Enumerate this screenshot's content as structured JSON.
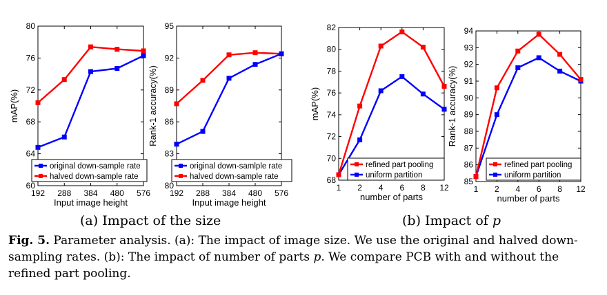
{
  "subcaptions": {
    "a_prefix": "(a) Impact of the size",
    "b_prefix": "(b) Impact of ",
    "b_var": "p"
  },
  "caption": {
    "label": "Fig. 5.",
    "t1": " Parameter analysis. (a): The impact of image size. We use the original and halved down-sampling rates. (b): The impact of number of parts ",
    "var": "p",
    "t2": ". We compare PCB with and without the refined part pooling."
  },
  "colors": {
    "red": "#ff0000",
    "blue": "#0000ff"
  },
  "chart_data": [
    {
      "type": "line",
      "panel": "a",
      "categories": [
        "192",
        "288",
        "384",
        "480",
        "576"
      ],
      "xlabel": "Input image height",
      "ylabel": "mAP(%)",
      "ylim": [
        60,
        80
      ],
      "yticks": [
        60,
        64,
        68,
        72,
        76,
        80
      ],
      "legend_position": "bottom-right",
      "series": [
        {
          "name": "original down-sample rate",
          "color": "blue",
          "values": [
            64.8,
            66.1,
            74.3,
            74.7,
            76.3
          ]
        },
        {
          "name": "halved down-sample rate",
          "color": "red",
          "values": [
            70.4,
            73.3,
            77.4,
            77.1,
            76.9
          ]
        }
      ]
    },
    {
      "type": "line",
      "panel": "a",
      "categories": [
        "192",
        "288",
        "384",
        "480",
        "576"
      ],
      "xlabel": "Input image height",
      "ylabel": "Rank-1 accuracy(%)",
      "ylim": [
        80,
        95
      ],
      "yticks": [
        80,
        83,
        86,
        89,
        92,
        95
      ],
      "legend_position": "bottom-right",
      "series": [
        {
          "name": "original down-samlple rate",
          "color": "blue",
          "values": [
            83.9,
            85.1,
            90.1,
            91.4,
            92.4
          ]
        },
        {
          "name": "halved down-sample rate",
          "color": "red",
          "values": [
            87.7,
            89.9,
            92.3,
            92.5,
            92.4
          ]
        }
      ]
    },
    {
      "type": "line",
      "panel": "b",
      "categories": [
        "1",
        "2",
        "4",
        "6",
        "8",
        "12"
      ],
      "xlabel": "number of parts",
      "ylabel": "mAP(%)",
      "ylim": [
        68,
        82
      ],
      "yticks": [
        68,
        70,
        72,
        74,
        76,
        78,
        80,
        82
      ],
      "legend_position": "bottom-right",
      "series": [
        {
          "name": "refined part pooling",
          "color": "red",
          "values": [
            68.5,
            74.8,
            80.3,
            81.6,
            80.2,
            76.6
          ]
        },
        {
          "name": "uniform partition",
          "color": "blue",
          "values": [
            68.5,
            71.7,
            76.2,
            77.5,
            75.9,
            74.5
          ]
        }
      ]
    },
    {
      "type": "line",
      "panel": "b",
      "categories": [
        "1",
        "2",
        "4",
        "6",
        "8",
        "12"
      ],
      "xlabel": "number of parts",
      "ylabel": "Rank-1 accuracy(%)",
      "ylim": [
        85,
        94
      ],
      "yticks": [
        85,
        86,
        87,
        88,
        89,
        90,
        91,
        92,
        93,
        94
      ],
      "legend_position": "bottom-right",
      "series": [
        {
          "name": "refined part pooling",
          "color": "red",
          "values": [
            85.3,
            90.6,
            92.8,
            93.8,
            92.6,
            91.1
          ]
        },
        {
          "name": "uniform partition",
          "color": "blue",
          "values": [
            85.3,
            89.0,
            91.8,
            92.4,
            91.6,
            91.0
          ]
        }
      ]
    }
  ]
}
